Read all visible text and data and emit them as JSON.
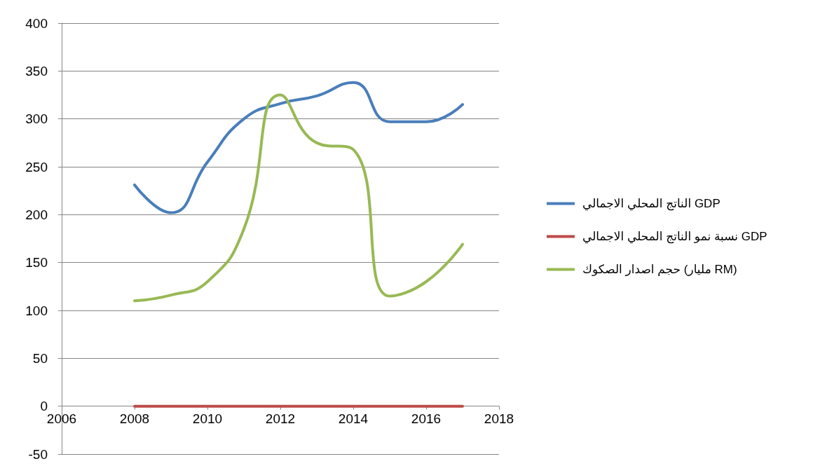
{
  "chart_data": {
    "type": "line",
    "x": [
      2008,
      2009,
      2010,
      2011,
      2012,
      2013,
      2014,
      2015,
      2016,
      2017
    ],
    "series": [
      {
        "name": "الناتج المحلي الاجمالي GDP",
        "color": "#4a7ebb",
        "values": [
          231,
          202,
          255,
          300,
          316,
          324,
          338,
          297,
          297,
          315
        ]
      },
      {
        "name": "نسبة نمو الناتج المحلي الاجمالي GDP",
        "color": "#be4b48",
        "values": [
          0,
          0,
          0,
          0,
          0,
          0,
          0,
          0,
          0,
          0
        ]
      },
      {
        "name": "حجم اصدار الصكوك (مليار RM)",
        "color": "#98b954",
        "values": [
          110,
          116,
          130,
          185,
          325,
          275,
          268,
          115,
          130,
          169
        ]
      }
    ],
    "xlim": [
      2006,
      2018
    ],
    "xticks": [
      2006,
      2008,
      2010,
      2012,
      2014,
      2016,
      2018
    ],
    "ylim": [
      -50,
      400
    ],
    "yticks": [
      -50,
      0,
      50,
      100,
      150,
      200,
      250,
      300,
      350,
      400
    ],
    "grid": "y",
    "legend": "right",
    "marker": "none",
    "line_style": "solid"
  }
}
